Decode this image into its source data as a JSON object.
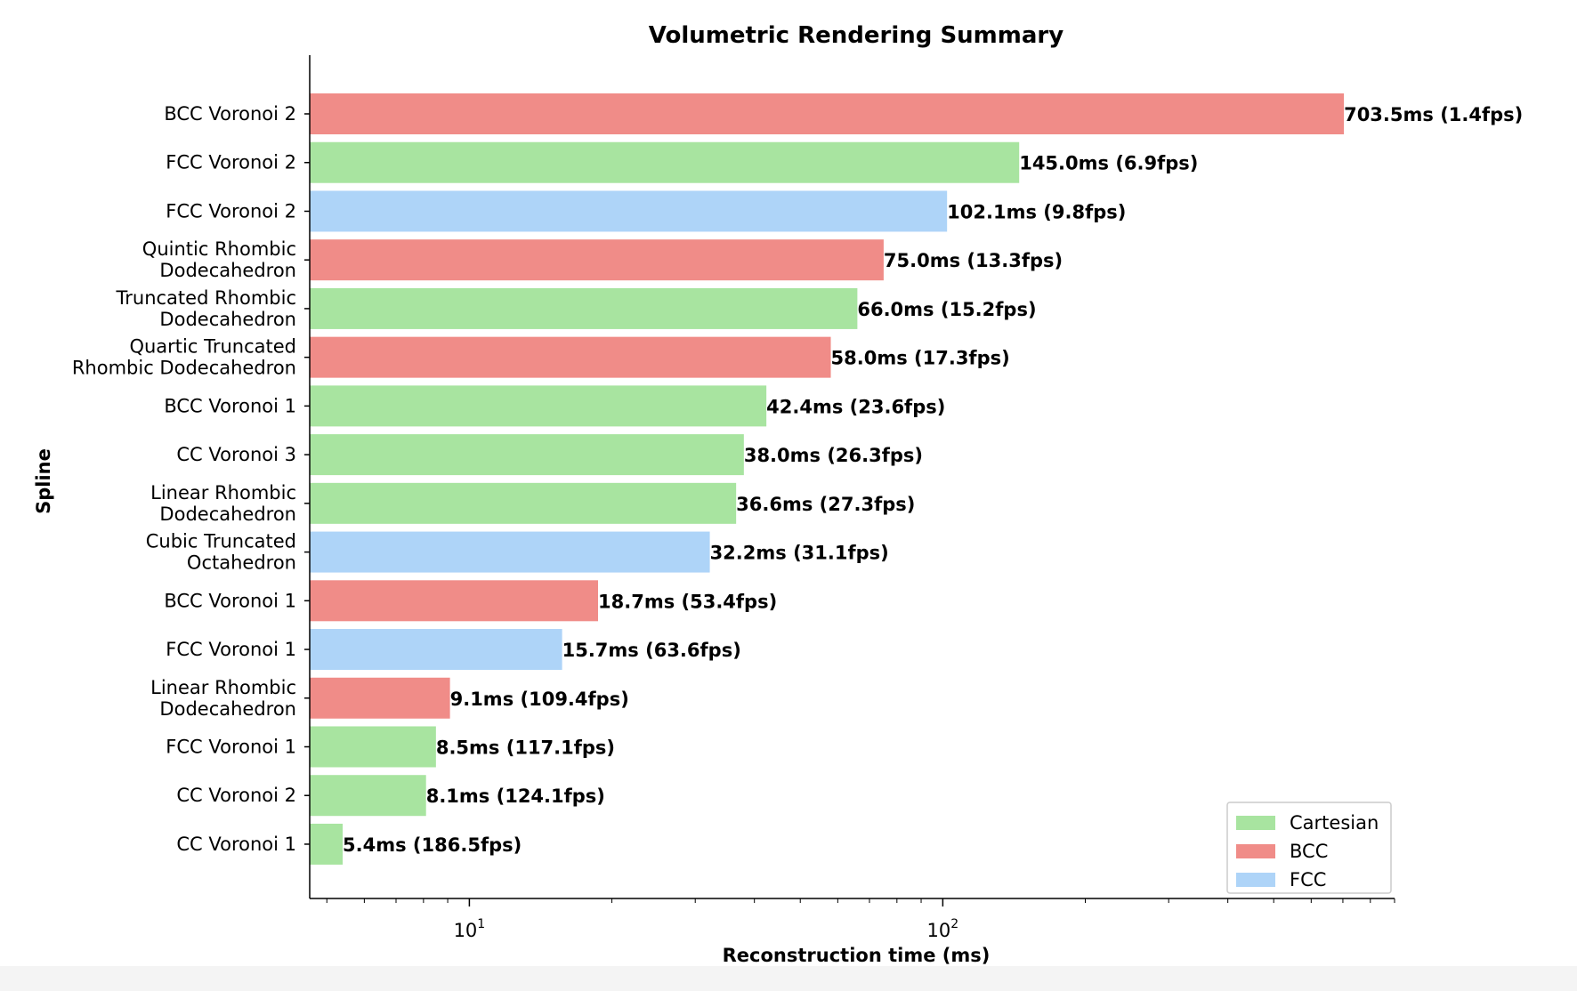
{
  "chart_data": {
    "type": "bar",
    "orientation": "horizontal",
    "title": "Volumetric Rendering Summary",
    "xlabel": "Reconstruction time (ms)",
    "ylabel": "Spline",
    "xscale": "log",
    "xlim": [
      4.6,
      900
    ],
    "xticks": [
      {
        "value": 10,
        "base": "10",
        "exp": "1"
      },
      {
        "value": 100,
        "base": "10",
        "exp": "2"
      }
    ],
    "grid": false,
    "legend": {
      "position": "lower-right",
      "entries": [
        {
          "label": "Cartesian",
          "color": "#a8e4a0"
        },
        {
          "label": "BCC",
          "color": "#f08c88"
        },
        {
          "label": "FCC",
          "color": "#aed4f8"
        }
      ]
    },
    "bars": [
      {
        "lines": [
          "BCC Voronoi 2"
        ],
        "value": 703.5,
        "group": "BCC",
        "label": "703.5ms (1.4fps)"
      },
      {
        "lines": [
          "FCC Voronoi 2"
        ],
        "value": 145.0,
        "group": "Cartesian",
        "label": "145.0ms (6.9fps)"
      },
      {
        "lines": [
          "FCC Voronoi 2"
        ],
        "value": 102.1,
        "group": "FCC",
        "label": "102.1ms (9.8fps)"
      },
      {
        "lines": [
          "Quintic Rhombic",
          "Dodecahedron"
        ],
        "value": 75.0,
        "group": "BCC",
        "label": "75.0ms (13.3fps)"
      },
      {
        "lines": [
          "Truncated Rhombic",
          "Dodecahedron"
        ],
        "value": 66.0,
        "group": "Cartesian",
        "label": "66.0ms (15.2fps)"
      },
      {
        "lines": [
          "Quartic Truncated",
          "Rhombic Dodecahedron"
        ],
        "value": 58.0,
        "group": "BCC",
        "label": "58.0ms (17.3fps)"
      },
      {
        "lines": [
          "BCC Voronoi 1"
        ],
        "value": 42.4,
        "group": "Cartesian",
        "label": "42.4ms (23.6fps)"
      },
      {
        "lines": [
          "CC Voronoi 3"
        ],
        "value": 38.0,
        "group": "Cartesian",
        "label": "38.0ms (26.3fps)"
      },
      {
        "lines": [
          "Linear Rhombic",
          "Dodecahedron"
        ],
        "value": 36.6,
        "group": "Cartesian",
        "label": "36.6ms (27.3fps)"
      },
      {
        "lines": [
          "Cubic Truncated",
          "Octahedron"
        ],
        "value": 32.2,
        "group": "FCC",
        "label": "32.2ms (31.1fps)"
      },
      {
        "lines": [
          "BCC Voronoi 1"
        ],
        "value": 18.7,
        "group": "BCC",
        "label": "18.7ms (53.4fps)"
      },
      {
        "lines": [
          "FCC Voronoi 1"
        ],
        "value": 15.7,
        "group": "FCC",
        "label": "15.7ms (63.6fps)"
      },
      {
        "lines": [
          "Linear Rhombic",
          "Dodecahedron"
        ],
        "value": 9.1,
        "group": "BCC",
        "label": "9.1ms (109.4fps)"
      },
      {
        "lines": [
          "FCC Voronoi 1"
        ],
        "value": 8.5,
        "group": "Cartesian",
        "label": "8.5ms (117.1fps)"
      },
      {
        "lines": [
          "CC Voronoi 2"
        ],
        "value": 8.1,
        "group": "Cartesian",
        "label": "8.1ms (124.1fps)"
      },
      {
        "lines": [
          "CC Voronoi 1"
        ],
        "value": 5.4,
        "group": "Cartesian",
        "label": "5.4ms (186.5fps)"
      }
    ]
  }
}
